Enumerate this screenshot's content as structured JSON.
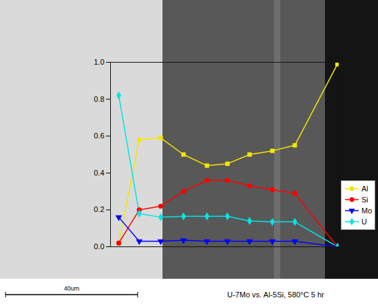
{
  "chart_data": {
    "type": "line",
    "caption": "U-7Mo vs. Al-5Si, 580°C 5 hr",
    "scale_bar": {
      "value": 40,
      "label": "40um"
    },
    "x": [
      0,
      6.2,
      12.7,
      19.6,
      26.7,
      32.9,
      39.6,
      46.5,
      53.3,
      66.2
    ],
    "xlim": [
      -2.5,
      66.7
    ],
    "ylim": [
      0,
      1
    ],
    "yticks": [
      {
        "value": 0,
        "label": "0.0"
      },
      0.2,
      0.4,
      0.6,
      0.8,
      {
        "value": 1,
        "label": "1.0"
      }
    ],
    "tick_labels": "y",
    "grid": false,
    "legend": "right",
    "series": [
      {
        "name": "Al",
        "color": "#f2e600",
        "marker": "square",
        "values": [
          0.02,
          0.58,
          0.59,
          0.5,
          0.44,
          0.45,
          0.5,
          0.52,
          0.55,
          0.99
        ]
      },
      {
        "name": "Si",
        "color": "#ff0000",
        "marker": "circle",
        "values": [
          0.02,
          0.2,
          0.22,
          0.3,
          0.36,
          0.36,
          0.33,
          0.31,
          0.29,
          0.0
        ]
      },
      {
        "name": "Mo",
        "color": "#0000ff",
        "marker": "triangle-down",
        "values": [
          0.16,
          0.03,
          0.03,
          0.035,
          0.03,
          0.03,
          0.03,
          0.03,
          0.03,
          0.0
        ]
      },
      {
        "name": "U",
        "color": "#00e5e5",
        "marker": "diamond",
        "values": [
          0.82,
          0.18,
          0.16,
          0.165,
          0.165,
          0.165,
          0.14,
          0.135,
          0.135,
          0.0
        ]
      }
    ]
  }
}
